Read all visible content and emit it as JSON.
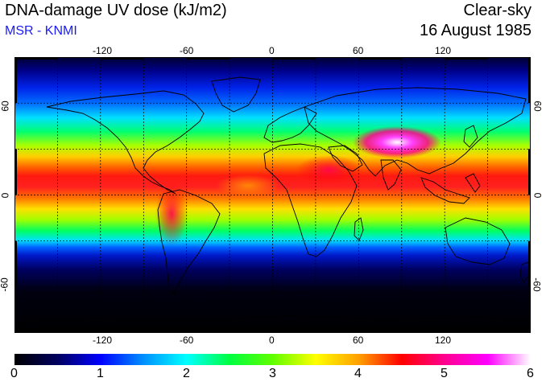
{
  "header": {
    "title": "DNA-damage UV dose (kJ/m2)",
    "subtitle": "MSR - KNMI",
    "sky_condition": "Clear-sky",
    "date": "16 August 1985"
  },
  "map": {
    "lon_ticks": [
      "-120",
      "-60",
      "0",
      "60",
      "120"
    ],
    "lat_ticks": [
      "60",
      "0",
      "-60"
    ],
    "lon_range": [
      -180,
      180
    ],
    "lat_range": [
      -90,
      90
    ],
    "gridlines": "dashed every 30°"
  },
  "colorbar": {
    "min": 0,
    "max": 6,
    "labels": [
      "0",
      "1",
      "2",
      "3",
      "4",
      "5",
      "6"
    ],
    "colors": [
      "#000000",
      "#000060",
      "#0000ff",
      "#0090ff",
      "#00ffff",
      "#00ff40",
      "#60ff00",
      "#ffff00",
      "#ffa000",
      "#ff0000",
      "#ff0090",
      "#ff00ff",
      "#ffffff"
    ]
  }
}
